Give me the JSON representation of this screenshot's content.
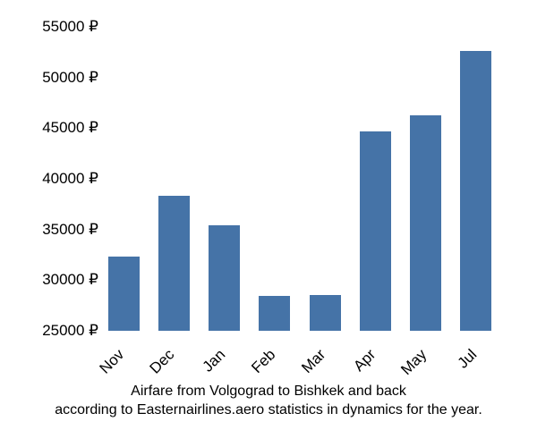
{
  "chart": {
    "type": "bar",
    "categories": [
      "Nov",
      "Dec",
      "Jan",
      "Feb",
      "Mar",
      "Apr",
      "May",
      "Jul"
    ],
    "values": [
      32300,
      38300,
      35400,
      28400,
      28500,
      44700,
      46300,
      52600
    ],
    "bar_color": "#4573a7",
    "background_color": "#ffffff",
    "ylim": [
      25000,
      55000
    ],
    "ytick_step": 5000,
    "ytick_labels": [
      "25000 ₽",
      "30000 ₽",
      "35000 ₽",
      "40000 ₽",
      "45000 ₽",
      "50000 ₽",
      "55000 ₽"
    ],
    "ytick_values": [
      25000,
      30000,
      35000,
      40000,
      45000,
      50000,
      55000
    ],
    "bar_width_ratio": 0.62,
    "tick_label_fontsize": 17,
    "tick_label_color": "#000000",
    "x_tick_rotation": -45,
    "caption_line1": "Airfare from Volgograd to Bishkek and back",
    "caption_line2": "according to Easternairlines.aero statistics in dynamics for the year.",
    "caption_fontsize": 16,
    "caption_color": "#000000"
  }
}
